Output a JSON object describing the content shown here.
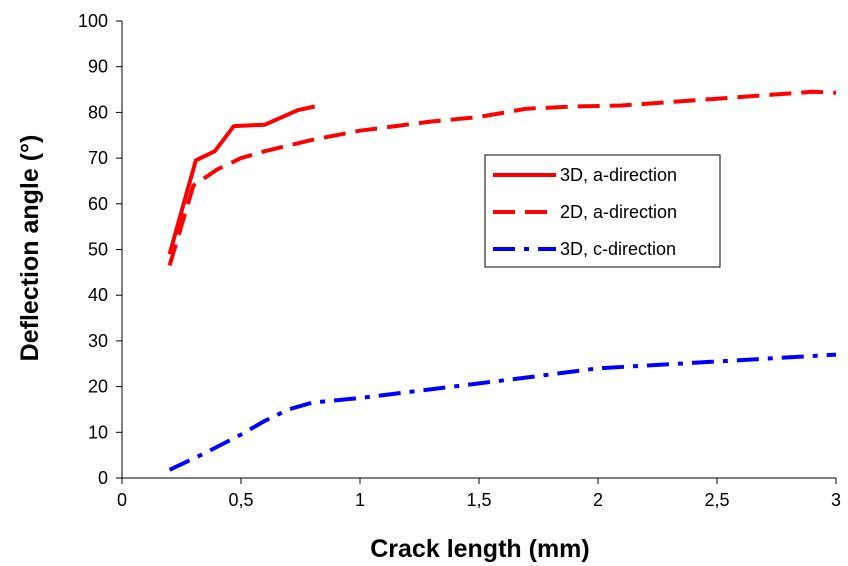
{
  "chart_data": {
    "type": "line",
    "title": "",
    "xlabel": "Crack length (mm)",
    "ylabel": "Deflection angle (°)",
    "xlim": [
      0,
      3
    ],
    "ylim": [
      0,
      100
    ],
    "x_ticks": [
      "0",
      "0,5",
      "1",
      "1,5",
      "2",
      "2,5",
      "3"
    ],
    "y_ticks": [
      "0",
      "10",
      "20",
      "30",
      "40",
      "50",
      "60",
      "70",
      "80",
      "90",
      "100"
    ],
    "grid": false,
    "legend_position": "center-right",
    "series": [
      {
        "name": "3D, a-direction",
        "color": "#ff0000",
        "dash": "solid",
        "x": [
          0.2,
          0.31,
          0.39,
          0.47,
          0.6,
          0.74,
          0.81
        ],
        "y": [
          49,
          69.5,
          71.5,
          77,
          77.3,
          80.5,
          81.3
        ]
      },
      {
        "name": "2D, a-direction",
        "color": "#ff0000",
        "dash": "dashed",
        "x": [
          0.2,
          0.3,
          0.4,
          0.5,
          0.6,
          0.8,
          1.0,
          1.3,
          1.5,
          1.7,
          1.9,
          2.1,
          2.5,
          2.9,
          3.0
        ],
        "y": [
          46.5,
          64,
          67.5,
          70,
          71.5,
          74,
          76,
          78,
          79,
          80.8,
          81.3,
          81.5,
          83,
          84.5,
          84.3
        ]
      },
      {
        "name": "3D, c-direction",
        "color": "#0000ff",
        "dash": "dash-dot",
        "x": [
          0.2,
          0.35,
          0.5,
          0.6,
          0.7,
          0.8,
          1.0,
          1.5,
          1.7,
          2.0,
          2.5,
          3.0
        ],
        "y": [
          1.8,
          5.5,
          9.5,
          12.5,
          15,
          16.5,
          17.5,
          20.7,
          22,
          24,
          25.5,
          27
        ]
      }
    ]
  }
}
